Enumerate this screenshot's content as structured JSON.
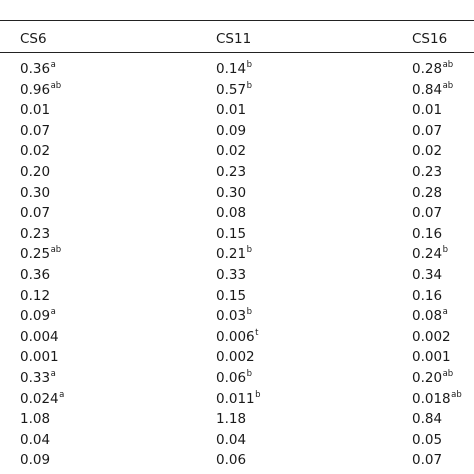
{
  "table": {
    "headers": [
      "CS6",
      "CS11",
      "CS16"
    ],
    "rows": [
      [
        {
          "v": "0.36",
          "s": "a"
        },
        {
          "v": "0.14",
          "s": "b"
        },
        {
          "v": "0.28",
          "s": "ab"
        }
      ],
      [
        {
          "v": "0.96",
          "s": "ab"
        },
        {
          "v": "0.57",
          "s": "b"
        },
        {
          "v": "0.84",
          "s": "ab"
        }
      ],
      [
        {
          "v": "0.01",
          "s": ""
        },
        {
          "v": "0.01",
          "s": ""
        },
        {
          "v": "0.01",
          "s": ""
        }
      ],
      [
        {
          "v": "0.07",
          "s": ""
        },
        {
          "v": "0.09",
          "s": ""
        },
        {
          "v": "0.07",
          "s": ""
        }
      ],
      [
        {
          "v": "0.02",
          "s": ""
        },
        {
          "v": "0.02",
          "s": ""
        },
        {
          "v": "0.02",
          "s": ""
        }
      ],
      [
        {
          "v": "0.20",
          "s": ""
        },
        {
          "v": "0.23",
          "s": ""
        },
        {
          "v": "0.23",
          "s": ""
        }
      ],
      [
        {
          "v": "0.30",
          "s": ""
        },
        {
          "v": "0.30",
          "s": ""
        },
        {
          "v": "0.28",
          "s": ""
        }
      ],
      [
        {
          "v": "0.07",
          "s": ""
        },
        {
          "v": "0.08",
          "s": ""
        },
        {
          "v": "0.07",
          "s": ""
        }
      ],
      [
        {
          "v": "0.23",
          "s": ""
        },
        {
          "v": "0.15",
          "s": ""
        },
        {
          "v": "0.16",
          "s": ""
        }
      ],
      [
        {
          "v": "0.25",
          "s": "ab"
        },
        {
          "v": "0.21",
          "s": "b"
        },
        {
          "v": "0.24",
          "s": "b"
        }
      ],
      [
        {
          "v": "0.36",
          "s": ""
        },
        {
          "v": "0.33",
          "s": ""
        },
        {
          "v": "0.34",
          "s": ""
        }
      ],
      [
        {
          "v": "0.12",
          "s": ""
        },
        {
          "v": "0.15",
          "s": ""
        },
        {
          "v": "0.16",
          "s": ""
        }
      ],
      [
        {
          "v": "0.09",
          "s": "a"
        },
        {
          "v": "0.03",
          "s": "b"
        },
        {
          "v": "0.08",
          "s": "a"
        }
      ],
      [
        {
          "v": "0.004",
          "s": ""
        },
        {
          "v": "0.006",
          "s": "t"
        },
        {
          "v": "0.002",
          "s": ""
        }
      ],
      [
        {
          "v": "0.001",
          "s": ""
        },
        {
          "v": "0.002",
          "s": ""
        },
        {
          "v": "0.001",
          "s": ""
        }
      ],
      [
        {
          "v": "0.33",
          "s": "a"
        },
        {
          "v": "0.06",
          "s": "b"
        },
        {
          "v": "0.20",
          "s": "ab"
        }
      ],
      [
        {
          "v": "0.024",
          "s": "a"
        },
        {
          "v": "0.011",
          "s": "b"
        },
        {
          "v": "0.018",
          "s": "ab"
        }
      ],
      [
        {
          "v": "1.08",
          "s": ""
        },
        {
          "v": "1.18",
          "s": ""
        },
        {
          "v": "0.84",
          "s": ""
        }
      ],
      [
        {
          "v": "0.04",
          "s": ""
        },
        {
          "v": "0.04",
          "s": ""
        },
        {
          "v": "0.05",
          "s": ""
        }
      ],
      [
        {
          "v": "0.09",
          "s": ""
        },
        {
          "v": "0.06",
          "s": ""
        },
        {
          "v": "0.07",
          "s": ""
        }
      ]
    ]
  }
}
